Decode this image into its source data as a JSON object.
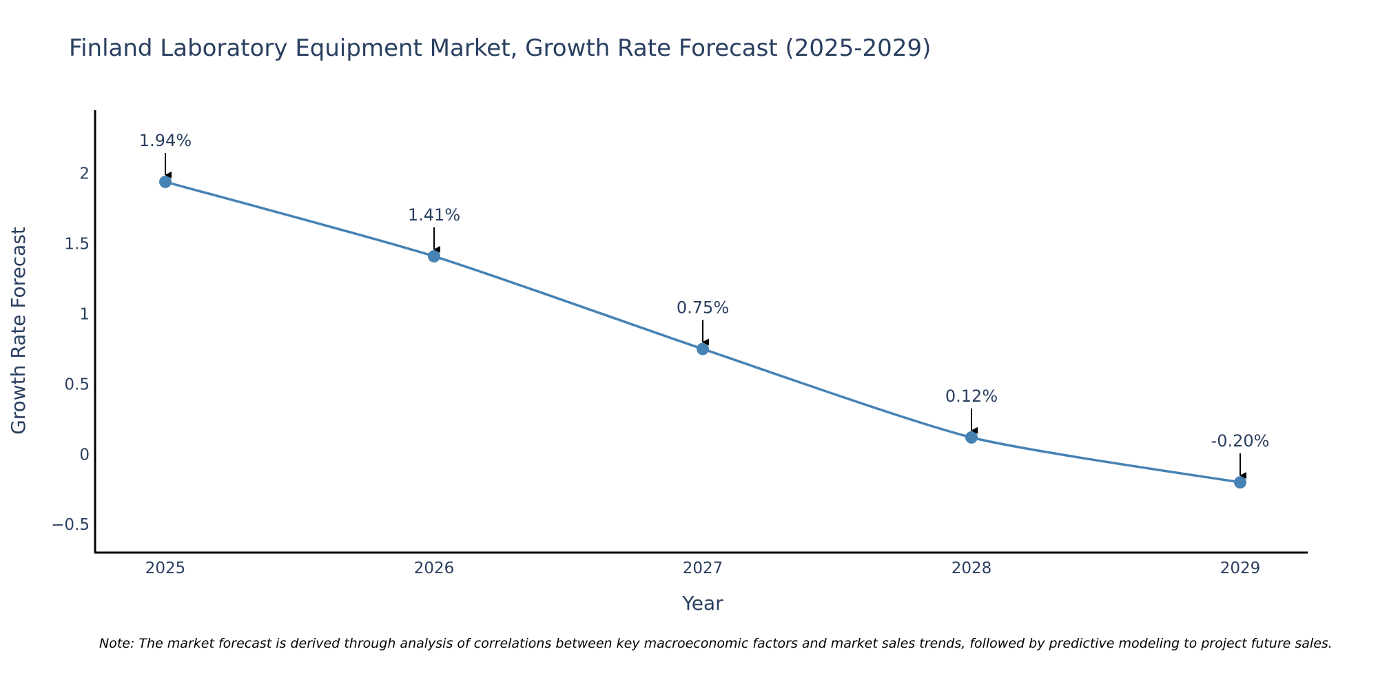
{
  "chart_data": {
    "type": "line",
    "title": "Finland Laboratory Equipment Market, Growth Rate Forecast (2025-2029)",
    "xlabel": "Year",
    "ylabel": "Growth Rate Forecast",
    "categories": [
      "2025",
      "2026",
      "2027",
      "2028",
      "2029"
    ],
    "values": [
      1.94,
      1.41,
      0.75,
      0.12,
      -0.2
    ],
    "data_labels": [
      "1.94%",
      "1.41%",
      "0.75%",
      "0.12%",
      "-0.20%"
    ],
    "ylim": [
      -0.7,
      2.45
    ],
    "yticks": [
      -0.5,
      0,
      0.5,
      1,
      1.5,
      2
    ],
    "ytick_labels": [
      "−0.5",
      "0",
      "0.5",
      "1",
      "1.5",
      "2"
    ],
    "line_shape": "spline",
    "grid": false,
    "legend": "none",
    "colors": {
      "line": "#4682b4",
      "marker": "#4682b4",
      "text": "#2a3f5f",
      "axis": "#000000",
      "arrow": "#000000"
    }
  },
  "note": "Note: The market forecast is derived through analysis of correlations between key macroeconomic factors and market sales trends, followed by predictive modeling to project future sales."
}
